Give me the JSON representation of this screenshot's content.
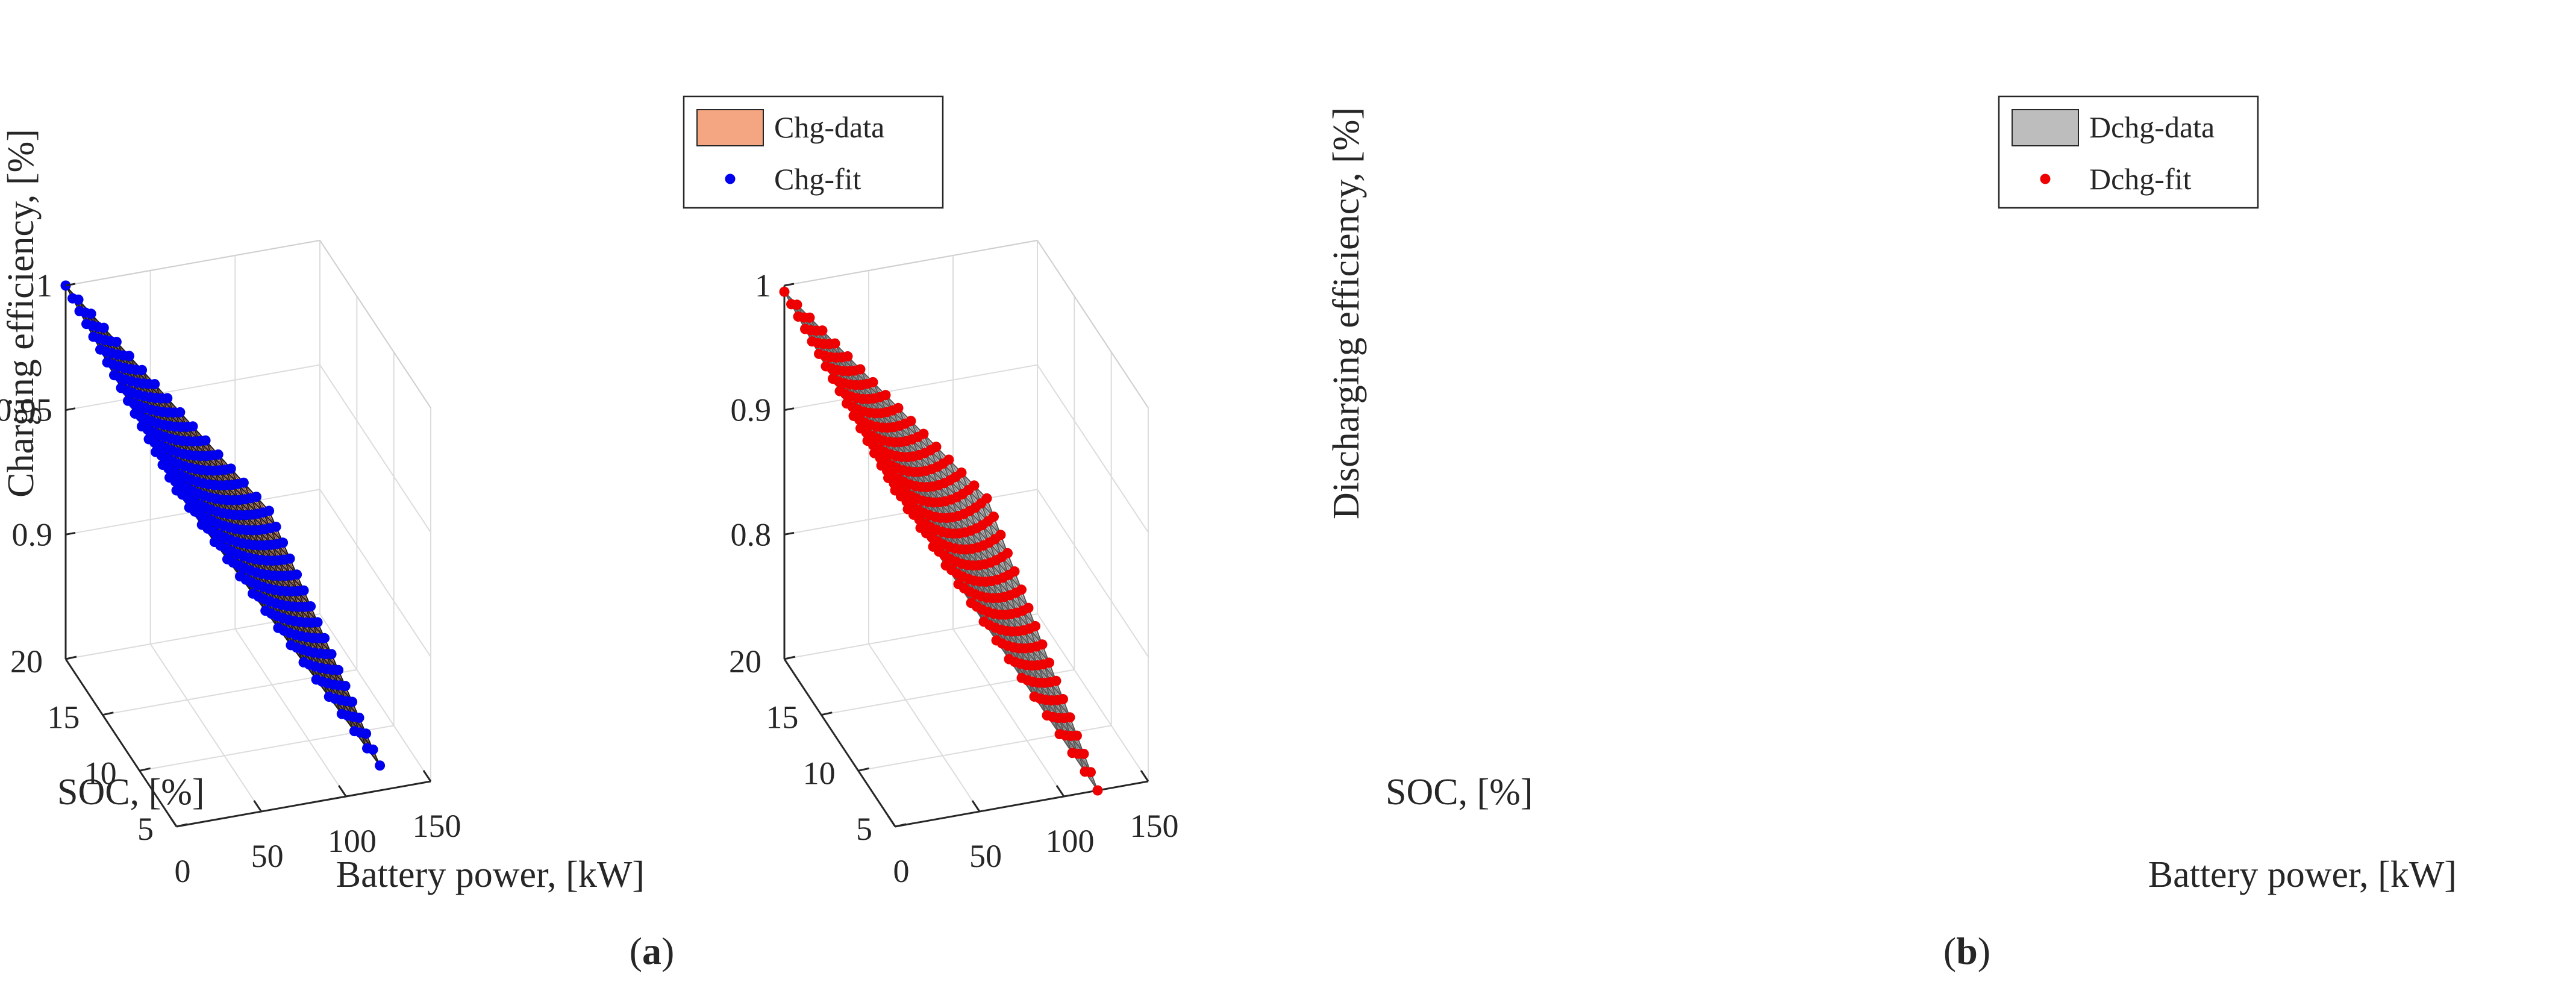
{
  "charts": [
    {
      "chart_data": {
        "type": "surface3d",
        "panel_caption": "a",
        "xlabel": "Battery power, [kW]",
        "ylabel": "SOC, [%]",
        "zlabel": "Charging efficiency, [%]",
        "xlim": [
          0,
          150
        ],
        "ylim": [
          5,
          20
        ],
        "zlim": [
          0.85,
          1.0
        ],
        "xticks": [
          "0",
          "50",
          "100",
          "150"
        ],
        "yticks": [
          "5",
          "10",
          "15",
          "20"
        ],
        "zticks": [
          "0.9",
          "0.95",
          "1"
        ],
        "zticks_values": [
          0.9,
          0.95,
          1.0
        ],
        "grid": true,
        "legend_position": "top-right",
        "series": [
          {
            "name": "Chg-data",
            "kind": "surface",
            "color": "#f4a582",
            "edge_color": "#1a1a1a"
          },
          {
            "name": "Chg-fit",
            "kind": "markers",
            "color": "#0000ee"
          }
        ],
        "surface": {
          "x_range": [
            0,
            120
          ],
          "y_range": [
            5,
            20
          ],
          "z_at_corners": {
            "x0_ysoc20": 1.0,
            "x0_ysoc5": 0.985,
            "x120_ysoc20": 0.895,
            "x120_ysoc5": 0.86
          }
        }
      }
    },
    {
      "chart_data": {
        "type": "surface3d",
        "panel_caption": "b",
        "xlabel": "Battery power, [kW]",
        "ylabel": "SOC, [%]",
        "zlabel": "Discharging efficiency, [%]",
        "xlim": [
          0,
          150
        ],
        "ylim": [
          5,
          20
        ],
        "zlim": [
          0.7,
          1.0
        ],
        "xticks": [
          "0",
          "50",
          "100",
          "150"
        ],
        "yticks": [
          "5",
          "10",
          "15",
          "20"
        ],
        "zticks": [
          "0.8",
          "0.9",
          "1"
        ],
        "zticks_values": [
          0.8,
          0.9,
          1.0
        ],
        "grid": true,
        "legend_position": "top-right",
        "series": [
          {
            "name": "Dchg-data",
            "kind": "surface",
            "color": "#bdbdbd",
            "edge_color": "#555555"
          },
          {
            "name": "Dchg-fit",
            "kind": "markers",
            "color": "#ee0000"
          }
        ],
        "surface": {
          "x_range": [
            0,
            120
          ],
          "y_range": [
            5,
            20
          ],
          "z_at_corners": {
            "x0_ysoc20": 0.995,
            "x0_ysoc5": 0.97,
            "x120_ysoc20": 0.8,
            "x120_ysoc5": 0.7
          }
        }
      }
    }
  ]
}
